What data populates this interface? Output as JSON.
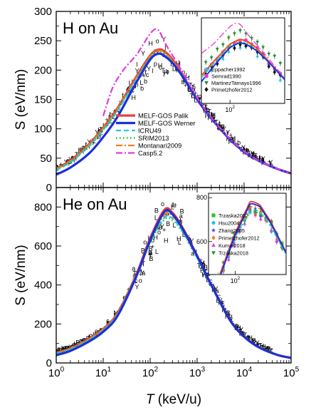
{
  "figure": {
    "xlabel_var": "T",
    "xlabel_unit": " (keV/u)",
    "colors": {
      "melf_palik": "#e8403a",
      "melf_werner": "#1c2fd8",
      "icru49": "#29c8e0",
      "srim2013": "#2fc22f",
      "montanari2009": "#f07f1a",
      "casp52": "#e23ad8",
      "exp": "#000000"
    }
  },
  "chart_data": [
    {
      "type": "line",
      "panel_label": "H on Au",
      "ylabel": "S (eV/nm)",
      "xscale": "log",
      "xlim": [
        1,
        100000
      ],
      "ylim": [
        0,
        300
      ],
      "yticks": [
        0,
        50,
        100,
        150,
        200,
        250,
        300
      ],
      "legend_position": "center",
      "series": [
        {
          "name": "MELF-GOS Palik",
          "style": "solid",
          "color_key": "melf_palik",
          "x": [
            1,
            2,
            5,
            10,
            20,
            50,
            100,
            150,
            200,
            300,
            500,
            1000,
            2000,
            5000,
            10000,
            20000,
            50000,
            100000
          ],
          "values": [
            32,
            46,
            74,
            102,
            135,
            188,
            225,
            235,
            232,
            218,
            190,
            150,
            118,
            82,
            61,
            46,
            32,
            24
          ]
        },
        {
          "name": "MELF-GOS Werner",
          "style": "solid",
          "color_key": "melf_werner",
          "x": [
            1,
            2,
            5,
            10,
            20,
            50,
            100,
            150,
            200,
            300,
            500,
            1000,
            2000,
            5000,
            10000,
            20000,
            50000,
            100000
          ],
          "values": [
            22,
            34,
            58,
            86,
            120,
            178,
            218,
            228,
            224,
            212,
            188,
            150,
            118,
            82,
            61,
            46,
            32,
            24
          ]
        },
        {
          "name": "ICRU49",
          "style": "dash",
          "color_key": "icru49",
          "x": [
            1,
            2,
            5,
            10,
            20,
            50,
            100,
            150,
            200,
            300,
            500,
            1000,
            2000,
            5000,
            10000,
            20000,
            50000,
            100000
          ],
          "values": [
            30,
            43,
            70,
            98,
            130,
            183,
            220,
            228,
            226,
            213,
            188,
            150,
            118,
            82,
            61,
            46,
            32,
            24
          ]
        },
        {
          "name": "SRIM2013",
          "style": "dot",
          "color_key": "srim2013",
          "x": [
            1,
            2,
            5,
            10,
            20,
            50,
            100,
            150,
            200,
            300,
            500,
            1000,
            2000,
            5000,
            10000,
            20000,
            50000,
            100000
          ],
          "values": [
            30,
            44,
            72,
            100,
            132,
            184,
            222,
            230,
            227,
            214,
            189,
            151,
            119,
            83,
            62,
            46,
            32,
            24
          ]
        },
        {
          "name": "Montanari2009",
          "style": "dashdot",
          "color_key": "montanari2009",
          "x": [
            1,
            2,
            5,
            10,
            20,
            50,
            100,
            150,
            200,
            300,
            500,
            1000,
            2000,
            5000,
            10000,
            20000,
            50000,
            100000
          ],
          "values": [
            31,
            45,
            73,
            101,
            134,
            186,
            224,
            233,
            230,
            216,
            190,
            151,
            119,
            83,
            62,
            46,
            32,
            24
          ]
        },
        {
          "name": "Casp5.2",
          "style": "dashdot",
          "color_key": "casp52",
          "x": [
            10,
            15,
            20,
            30,
            50,
            70,
            100,
            130,
            160,
            200,
            300,
            500,
            1000,
            2000,
            5000,
            10000,
            20000,
            50000,
            100000
          ],
          "values": [
            122,
            165,
            185,
            205,
            225,
            243,
            262,
            270,
            265,
            248,
            225,
            195,
            153,
            119,
            83,
            62,
            46,
            32,
            24
          ]
        }
      ],
      "experimental_symbols": [
        "o",
        "c",
        "l",
        "f",
        "p",
        "b",
        "+",
        "Y",
        "H",
        "L",
        "T"
      ],
      "inset": {
        "xscale": "log",
        "xlim": [
          30,
          1000
        ],
        "ylim": [
          100,
          280
        ],
        "xtick_label": "10",
        "xtick_exp": "2",
        "legend": [
          {
            "name": "Eppacher1992",
            "marker": "triangle-up",
            "color": "#25c4e8"
          },
          {
            "name": "Semrad1990",
            "marker": "square",
            "color": "#e33bd9"
          },
          {
            "name": "MartinezTamayo1996",
            "marker": "triangle-down",
            "color": "#1f8f2a"
          },
          {
            "name": "Primetzhofer2012",
            "marker": "diamond",
            "color": "#111111"
          }
        ]
      }
    },
    {
      "type": "line",
      "panel_label": "He on Au",
      "ylabel": "S (eV/nm)",
      "xscale": "log",
      "xlim": [
        1,
        100000
      ],
      "ylim": [
        0,
        900
      ],
      "yticks": [
        0,
        200,
        400,
        600,
        800
      ],
      "series": [
        {
          "name": "MELF-GOS Palik",
          "style": "solid",
          "color_key": "melf_palik",
          "x": [
            1,
            2,
            5,
            10,
            20,
            50,
            100,
            200,
            300,
            500,
            1000,
            2000,
            5000,
            10000,
            20000,
            50000,
            100000
          ],
          "values": [
            52,
            75,
            125,
            175,
            255,
            450,
            640,
            785,
            770,
            690,
            550,
            400,
            220,
            135,
            82,
            42,
            26
          ]
        },
        {
          "name": "MELF-GOS Werner",
          "style": "solid",
          "color_key": "melf_werner",
          "x": [
            1,
            2,
            5,
            10,
            20,
            50,
            100,
            200,
            300,
            500,
            1000,
            2000,
            5000,
            10000,
            20000,
            50000,
            100000
          ],
          "values": [
            40,
            62,
            110,
            160,
            240,
            440,
            630,
            775,
            762,
            685,
            548,
            400,
            220,
            135,
            82,
            42,
            26
          ]
        },
        {
          "name": "ICRU49",
          "style": "dash",
          "color_key": "icru49",
          "x": [
            1,
            2,
            5,
            10,
            20,
            50,
            100,
            200,
            300,
            500,
            1000,
            2000,
            5000,
            10000,
            20000,
            50000,
            100000
          ],
          "values": [
            48,
            70,
            118,
            168,
            248,
            442,
            620,
            745,
            740,
            672,
            540,
            395,
            218,
            134,
            82,
            42,
            26
          ]
        },
        {
          "name": "SRIM2013",
          "style": "dot",
          "color_key": "srim2013",
          "x": [
            1,
            2,
            5,
            10,
            20,
            50,
            100,
            200,
            300,
            500,
            1000,
            2000,
            5000,
            10000,
            20000,
            50000,
            100000
          ],
          "values": [
            49,
            72,
            120,
            170,
            250,
            445,
            618,
            735,
            732,
            668,
            540,
            395,
            218,
            134,
            82,
            42,
            26
          ]
        },
        {
          "name": "Montanari2009",
          "style": "dashdot",
          "color_key": "montanari2009",
          "x": [
            1,
            2,
            5,
            10,
            20,
            50,
            100,
            200,
            300,
            500,
            1000,
            2000,
            5000,
            10000,
            20000,
            50000,
            100000
          ],
          "values": [
            50,
            73,
            122,
            172,
            252,
            448,
            628,
            760,
            752,
            680,
            545,
            398,
            219,
            135,
            82,
            42,
            26
          ]
        }
      ],
      "experimental_symbols": [
        "Y",
        "c",
        "o",
        "H",
        "L",
        "B",
        "+",
        "T",
        "a"
      ],
      "inset": {
        "xscale": "log",
        "xlim": [
          30,
          1000
        ],
        "ylim": [
          450,
          820
        ],
        "yticks": [
          600,
          800
        ],
        "xtick_label": "10",
        "xtick_exp": "2",
        "legend": [
          {
            "name": "Trzaska2002",
            "marker": "square",
            "color": "#2fc22f"
          },
          {
            "name": "Hsu2004",
            "marker": "circle",
            "color": "#25c4e8"
          },
          {
            "name": "Zhang2005",
            "marker": "star",
            "color": "#5a3bd8"
          },
          {
            "name": "Primetzhofer2012",
            "marker": "diamond",
            "color": "#f07f1a"
          },
          {
            "name": "Kumar2018",
            "marker": "triangle-up",
            "color": "#e33bd9"
          },
          {
            "name": "Trzaska2018",
            "marker": "triangle-down",
            "color": "#1f8f2a"
          }
        ]
      }
    }
  ]
}
